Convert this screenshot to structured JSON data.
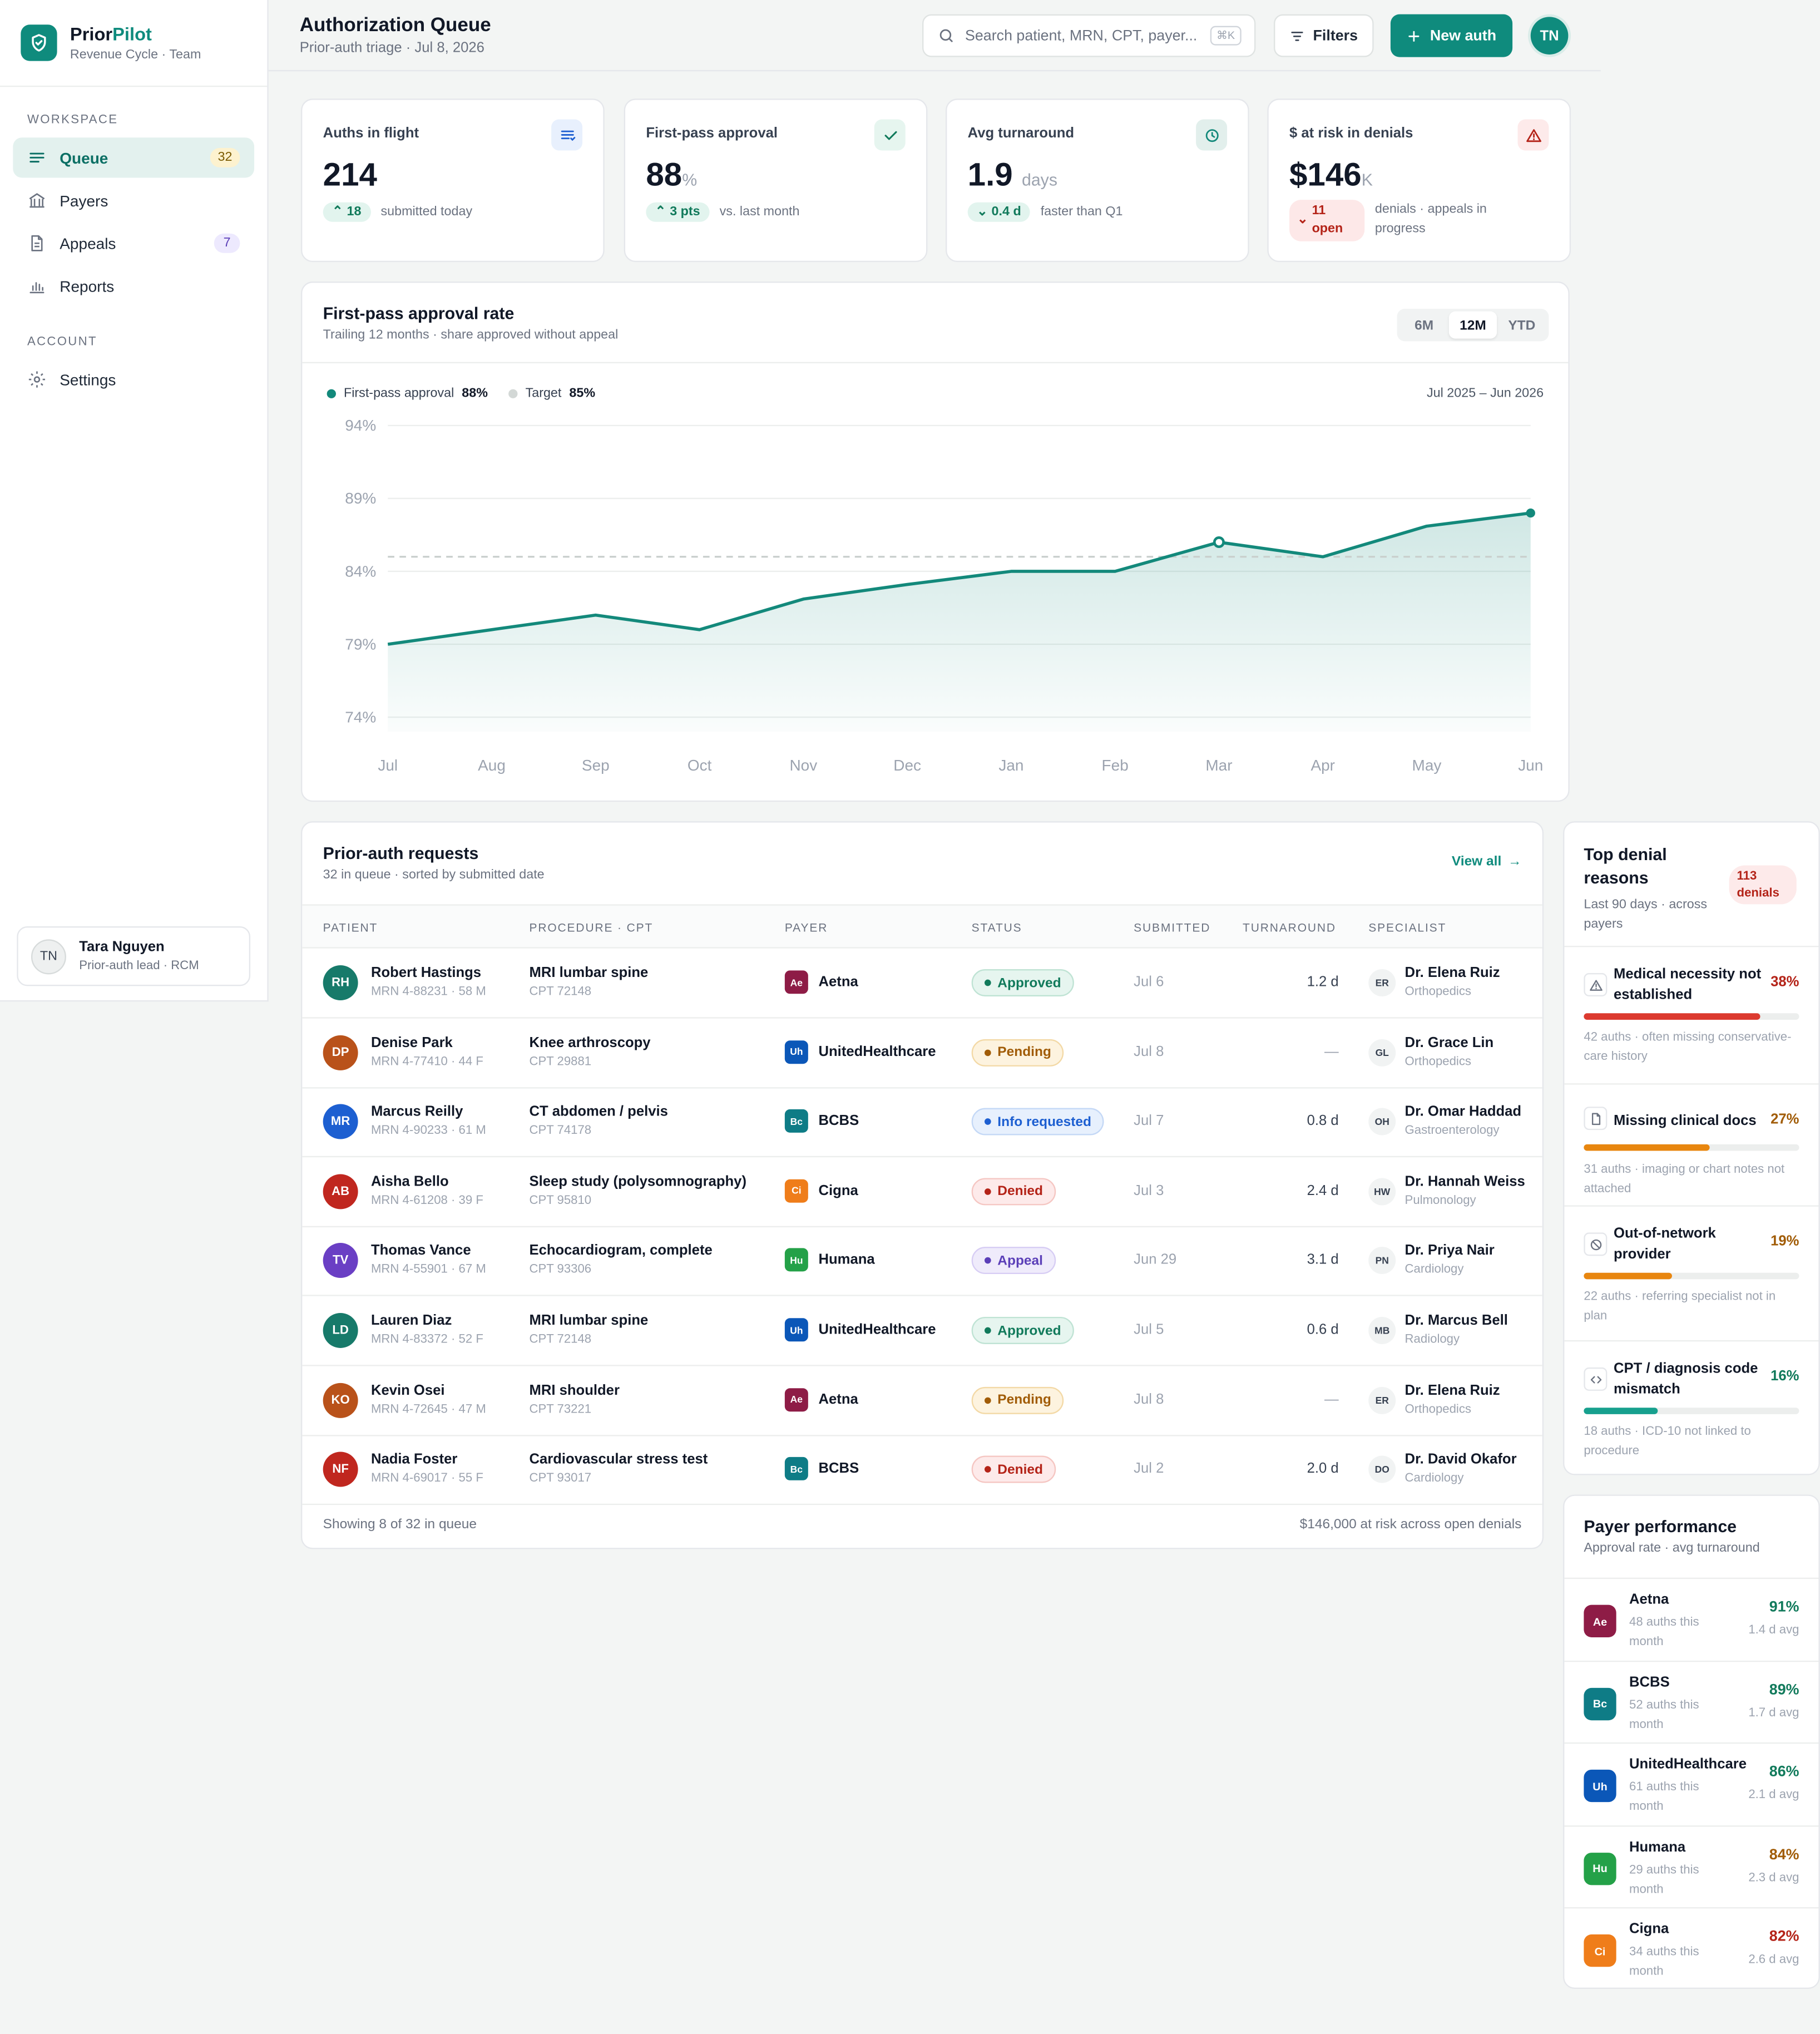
{
  "app": {
    "name_part1": "Prior",
    "name_part2": "Pilot",
    "subtitle": "Revenue Cycle · Team"
  },
  "sidebar": {
    "workspace_label": "WORKSPACE",
    "items": [
      {
        "label": "Queue",
        "badge": "32"
      },
      {
        "label": "Payers"
      },
      {
        "label": "Appeals",
        "badge": "7"
      },
      {
        "label": "Reports"
      }
    ],
    "account_label": "ACCOUNT",
    "settings_label": "Settings",
    "user": {
      "initials": "TN",
      "name": "Tara Nguyen",
      "role": "Prior-auth lead · RCM"
    }
  },
  "header": {
    "title": "Authorization Queue",
    "subtitle": "Prior-auth triage · Jul 8, 2026",
    "search_placeholder": "Search patient, MRN, CPT, payer...",
    "search_shortcut": "⌘K",
    "filters_label": "Filters",
    "new_auth_label": "New auth",
    "avatar_initials": "TN"
  },
  "kpis": [
    {
      "label": "Auths in flight",
      "value": "214",
      "unit": "",
      "delta": "18",
      "delta_dir": "up",
      "note": "submitted today",
      "icon": "list-icon"
    },
    {
      "label": "First-pass approval",
      "value": "88",
      "unit": "%",
      "delta": "3 pts",
      "delta_dir": "up",
      "note": "vs. last month",
      "icon": "check-icon"
    },
    {
      "label": "Avg turnaround",
      "value": "1.9",
      "unit": "days",
      "delta": "0.4 d",
      "delta_dir": "down",
      "note": "faster than Q1",
      "icon": "clock-icon"
    },
    {
      "label": "$ at risk in denials",
      "value": "$146",
      "unit": "K",
      "delta": "11 open",
      "delta_dir": "down",
      "note": "denials · appeals in progress",
      "icon": "alert-triangle-icon"
    }
  ],
  "chart_panel": {
    "title": "First-pass approval rate",
    "subtitle": "Trailing 12 months · share approved without appeal",
    "ranges": [
      "6M",
      "12M",
      "YTD"
    ],
    "active_range": "12M",
    "legend_series": "First-pass approval",
    "legend_series_value": "88%",
    "legend_target": "Target",
    "legend_target_value": "85%",
    "date_range": "Jul 2025 – Jun 2026"
  },
  "chart_data": {
    "type": "area",
    "categories": [
      "Jul",
      "Aug",
      "Sep",
      "Oct",
      "Nov",
      "Dec",
      "Jan",
      "Feb",
      "Mar",
      "Apr",
      "May",
      "Jun"
    ],
    "series": [
      {
        "name": "First-pass approval",
        "values": [
          79.0,
          80.0,
          81.0,
          80.0,
          82.1,
          83.1,
          84.0,
          84.0,
          86.0,
          85.0,
          87.1,
          88.0
        ]
      }
    ],
    "target": 85,
    "y_ticks": [
      "94%",
      "89%",
      "84%",
      "79%",
      "74%"
    ],
    "y_tick_values": [
      94,
      89,
      84,
      79,
      74
    ],
    "ylim": [
      73,
      94
    ],
    "grid": true,
    "colors": {
      "line": "#13897b",
      "target": "#c9cfcd"
    }
  },
  "requests": {
    "title": "Prior-auth requests",
    "subtitle": "32 in queue · sorted by submitted date",
    "view_all": "View all",
    "columns": [
      "PATIENT",
      "PROCEDURE · CPT",
      "PAYER",
      "STATUS",
      "SUBMITTED",
      "TURNAROUND",
      "SPECIALIST"
    ],
    "rows": [
      {
        "initials": "RH",
        "color": "#177a6a",
        "name": "Robert Hastings",
        "meta": "MRN 4-88231 · 58 M",
        "procedure": "MRI lumbar spine",
        "cpt": "CPT 72148",
        "payer_abbr": "Ae",
        "payer": "Aetna",
        "payer_color": "#8e1c46",
        "status": "Approved",
        "submitted": "Jul 6",
        "turnaround": "1.2 d",
        "spec_initials": "ER",
        "specialist": "Dr. Elena Ruiz",
        "specialty": "Orthopedics"
      },
      {
        "initials": "DP",
        "color": "#b9521a",
        "name": "Denise Park",
        "meta": "MRN 4-77410 · 44 F",
        "procedure": "Knee arthroscopy",
        "cpt": "CPT 29881",
        "payer_abbr": "Uh",
        "payer": "UnitedHealthcare",
        "payer_color": "#0b57b8",
        "status": "Pending",
        "submitted": "Jul 8",
        "turnaround": "—",
        "spec_initials": "GL",
        "specialist": "Dr. Grace Lin",
        "specialty": "Orthopedics"
      },
      {
        "initials": "MR",
        "color": "#1d5fd1",
        "name": "Marcus Reilly",
        "meta": "MRN 4-90233 · 61 M",
        "procedure": "CT abdomen / pelvis",
        "cpt": "CPT 74178",
        "payer_abbr": "Bc",
        "payer": "BCBS",
        "payer_color": "#0e7c86",
        "status": "Info requested",
        "submitted": "Jul 7",
        "turnaround": "0.8 d",
        "spec_initials": "OH",
        "specialist": "Dr. Omar Haddad",
        "specialty": "Gastroenterology"
      },
      {
        "initials": "AB",
        "color": "#c0271f",
        "name": "Aisha Bello",
        "meta": "MRN 4-61208 · 39 F",
        "procedure": "Sleep study (polysomnography)",
        "cpt": "CPT 95810",
        "payer_abbr": "Ci",
        "payer": "Cigna",
        "payer_color": "#ef7d1a",
        "status": "Denied",
        "submitted": "Jul 3",
        "turnaround": "2.4 d",
        "spec_initials": "HW",
        "specialist": "Dr. Hannah Weiss",
        "specialty": "Pulmonology"
      },
      {
        "initials": "TV",
        "color": "#6a3fc4",
        "name": "Thomas Vance",
        "meta": "MRN 4-55901 · 67 M",
        "procedure": "Echocardiogram, complete",
        "cpt": "CPT 93306",
        "payer_abbr": "Hu",
        "payer": "Humana",
        "payer_color": "#24a148",
        "status": "Appeal",
        "submitted": "Jun 29",
        "turnaround": "3.1 d",
        "spec_initials": "PN",
        "specialist": "Dr. Priya Nair",
        "specialty": "Cardiology"
      },
      {
        "initials": "LD",
        "color": "#177a6a",
        "name": "Lauren Diaz",
        "meta": "MRN 4-83372 · 52 F",
        "procedure": "MRI lumbar spine",
        "cpt": "CPT 72148",
        "payer_abbr": "Uh",
        "payer": "UnitedHealthcare",
        "payer_color": "#0b57b8",
        "status": "Approved",
        "submitted": "Jul 5",
        "turnaround": "0.6 d",
        "spec_initials": "MB",
        "specialist": "Dr. Marcus Bell",
        "specialty": "Radiology"
      },
      {
        "initials": "KO",
        "color": "#b9521a",
        "name": "Kevin Osei",
        "meta": "MRN 4-72645 · 47 M",
        "procedure": "MRI shoulder",
        "cpt": "CPT 73221",
        "payer_abbr": "Ae",
        "payer": "Aetna",
        "payer_color": "#8e1c46",
        "status": "Pending",
        "submitted": "Jul 8",
        "turnaround": "—",
        "spec_initials": "ER",
        "specialist": "Dr. Elena Ruiz",
        "specialty": "Orthopedics"
      },
      {
        "initials": "NF",
        "color": "#c0271f",
        "name": "Nadia Foster",
        "meta": "MRN 4-69017 · 55 F",
        "procedure": "Cardiovascular stress test",
        "cpt": "CPT 93017",
        "payer_abbr": "Bc",
        "payer": "BCBS",
        "payer_color": "#0e7c86",
        "status": "Denied",
        "submitted": "Jul 2",
        "turnaround": "2.0 d",
        "spec_initials": "DO",
        "specialist": "Dr. David Okafor",
        "specialty": "Cardiology"
      }
    ],
    "footer_left": "Showing 8 of 32 in queue",
    "footer_right": "$146,000 at risk across open denials"
  },
  "status_colors": {
    "Approved": {
      "bg": "#e6f5ef",
      "fg": "#117a5b",
      "border": "#bfe3d4"
    },
    "Pending": {
      "bg": "#fdf3df",
      "fg": "#a15c07",
      "border": "#f3d9a6"
    },
    "Info requested": {
      "bg": "#e7f0fd",
      "fg": "#1d5fd1",
      "border": "#c4d8f6"
    },
    "Denied": {
      "bg": "#fdeaea",
      "fg": "#b42318",
      "border": "#f5c6c2"
    },
    "Appeal": {
      "bg": "#efebfb",
      "fg": "#5b3fb8",
      "border": "#d7cdf4"
    }
  },
  "denials": {
    "title": "Top denial reasons",
    "badge": "113 denials",
    "subtitle": "Last 90 days · across payers",
    "reasons": [
      {
        "title": "Medical necessity not established",
        "pct": "38%",
        "share": 0.38,
        "desc": "42 auths · often missing conservative-care history",
        "color": "#dc3a2f",
        "icon": "alert-triangle-icon"
      },
      {
        "title": "Missing clinical docs",
        "pct": "27%",
        "share": 0.27,
        "desc": "31 auths · imaging or chart notes not attached",
        "color": "#e8860f",
        "icon": "document-icon"
      },
      {
        "title": "Out-of-network provider",
        "pct": "19%",
        "share": 0.19,
        "desc": "22 auths · referring specialist not in plan",
        "color": "#e8860f",
        "icon": "ban-icon"
      },
      {
        "title": "CPT / diagnosis code mismatch",
        "pct": "16%",
        "share": 0.16,
        "desc": "18 auths · ICD-10 not linked to procedure",
        "color": "#17a08e",
        "icon": "code-icon"
      }
    ]
  },
  "payers": {
    "title": "Payer performance",
    "subtitle": "Approval rate · avg turnaround",
    "rows": [
      {
        "abbr": "Ae",
        "name": "Aetna",
        "meta": "48 auths this month",
        "rate": "91%",
        "avg": "1.4 d avg",
        "color": "#8e1c46",
        "rate_color": "#117a5b"
      },
      {
        "abbr": "Bc",
        "name": "BCBS",
        "meta": "52 auths this month",
        "rate": "89%",
        "avg": "1.7 d avg",
        "color": "#0e7c86",
        "rate_color": "#117a5b"
      },
      {
        "abbr": "Uh",
        "name": "UnitedHealthcare",
        "meta": "61 auths this month",
        "rate": "86%",
        "avg": "2.1 d avg",
        "color": "#0b57b8",
        "rate_color": "#117a5b"
      },
      {
        "abbr": "Hu",
        "name": "Humana",
        "meta": "29 auths this month",
        "rate": "84%",
        "avg": "2.3 d avg",
        "color": "#24a148",
        "rate_color": "#a15c07"
      },
      {
        "abbr": "Ci",
        "name": "Cigna",
        "meta": "34 auths this month",
        "rate": "82%",
        "avg": "2.6 d avg",
        "color": "#ef7d1a",
        "rate_color": "#b42318"
      }
    ]
  }
}
